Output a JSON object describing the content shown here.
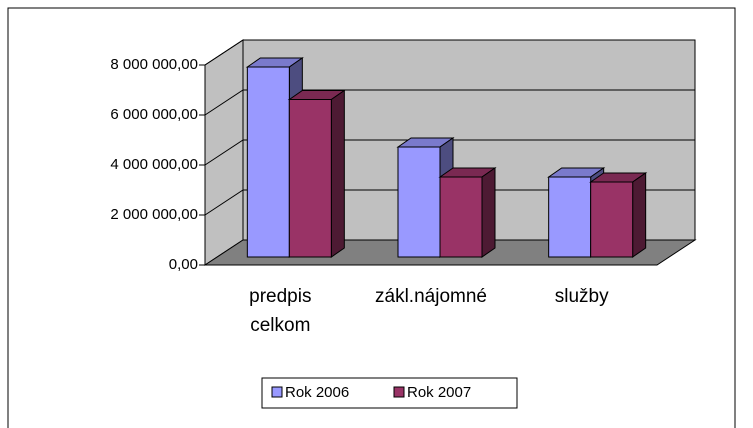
{
  "chart_data": {
    "type": "bar3d",
    "categories": [
      "predpis celkom",
      "zákl.nájomné",
      "služby"
    ],
    "series": [
      {
        "name": "Rok 2006",
        "color": "#9999ff",
        "values": [
          7600000,
          4400000,
          3200000
        ]
      },
      {
        "name": "Rok 2007",
        "color": "#993366",
        "values": [
          6300000,
          3200000,
          3000000
        ]
      }
    ],
    "ylim": [
      0,
      8000000
    ],
    "yticks": [
      {
        "value": 0,
        "label": "0,00"
      },
      {
        "value": 2000000,
        "label": "2 000 000,00"
      },
      {
        "value": 4000000,
        "label": "4 000 000,00"
      },
      {
        "value": 6000000,
        "label": "6 000 000,00"
      },
      {
        "value": 8000000,
        "label": "8 000 000,00"
      }
    ],
    "grid": true,
    "legend": "bottom"
  }
}
